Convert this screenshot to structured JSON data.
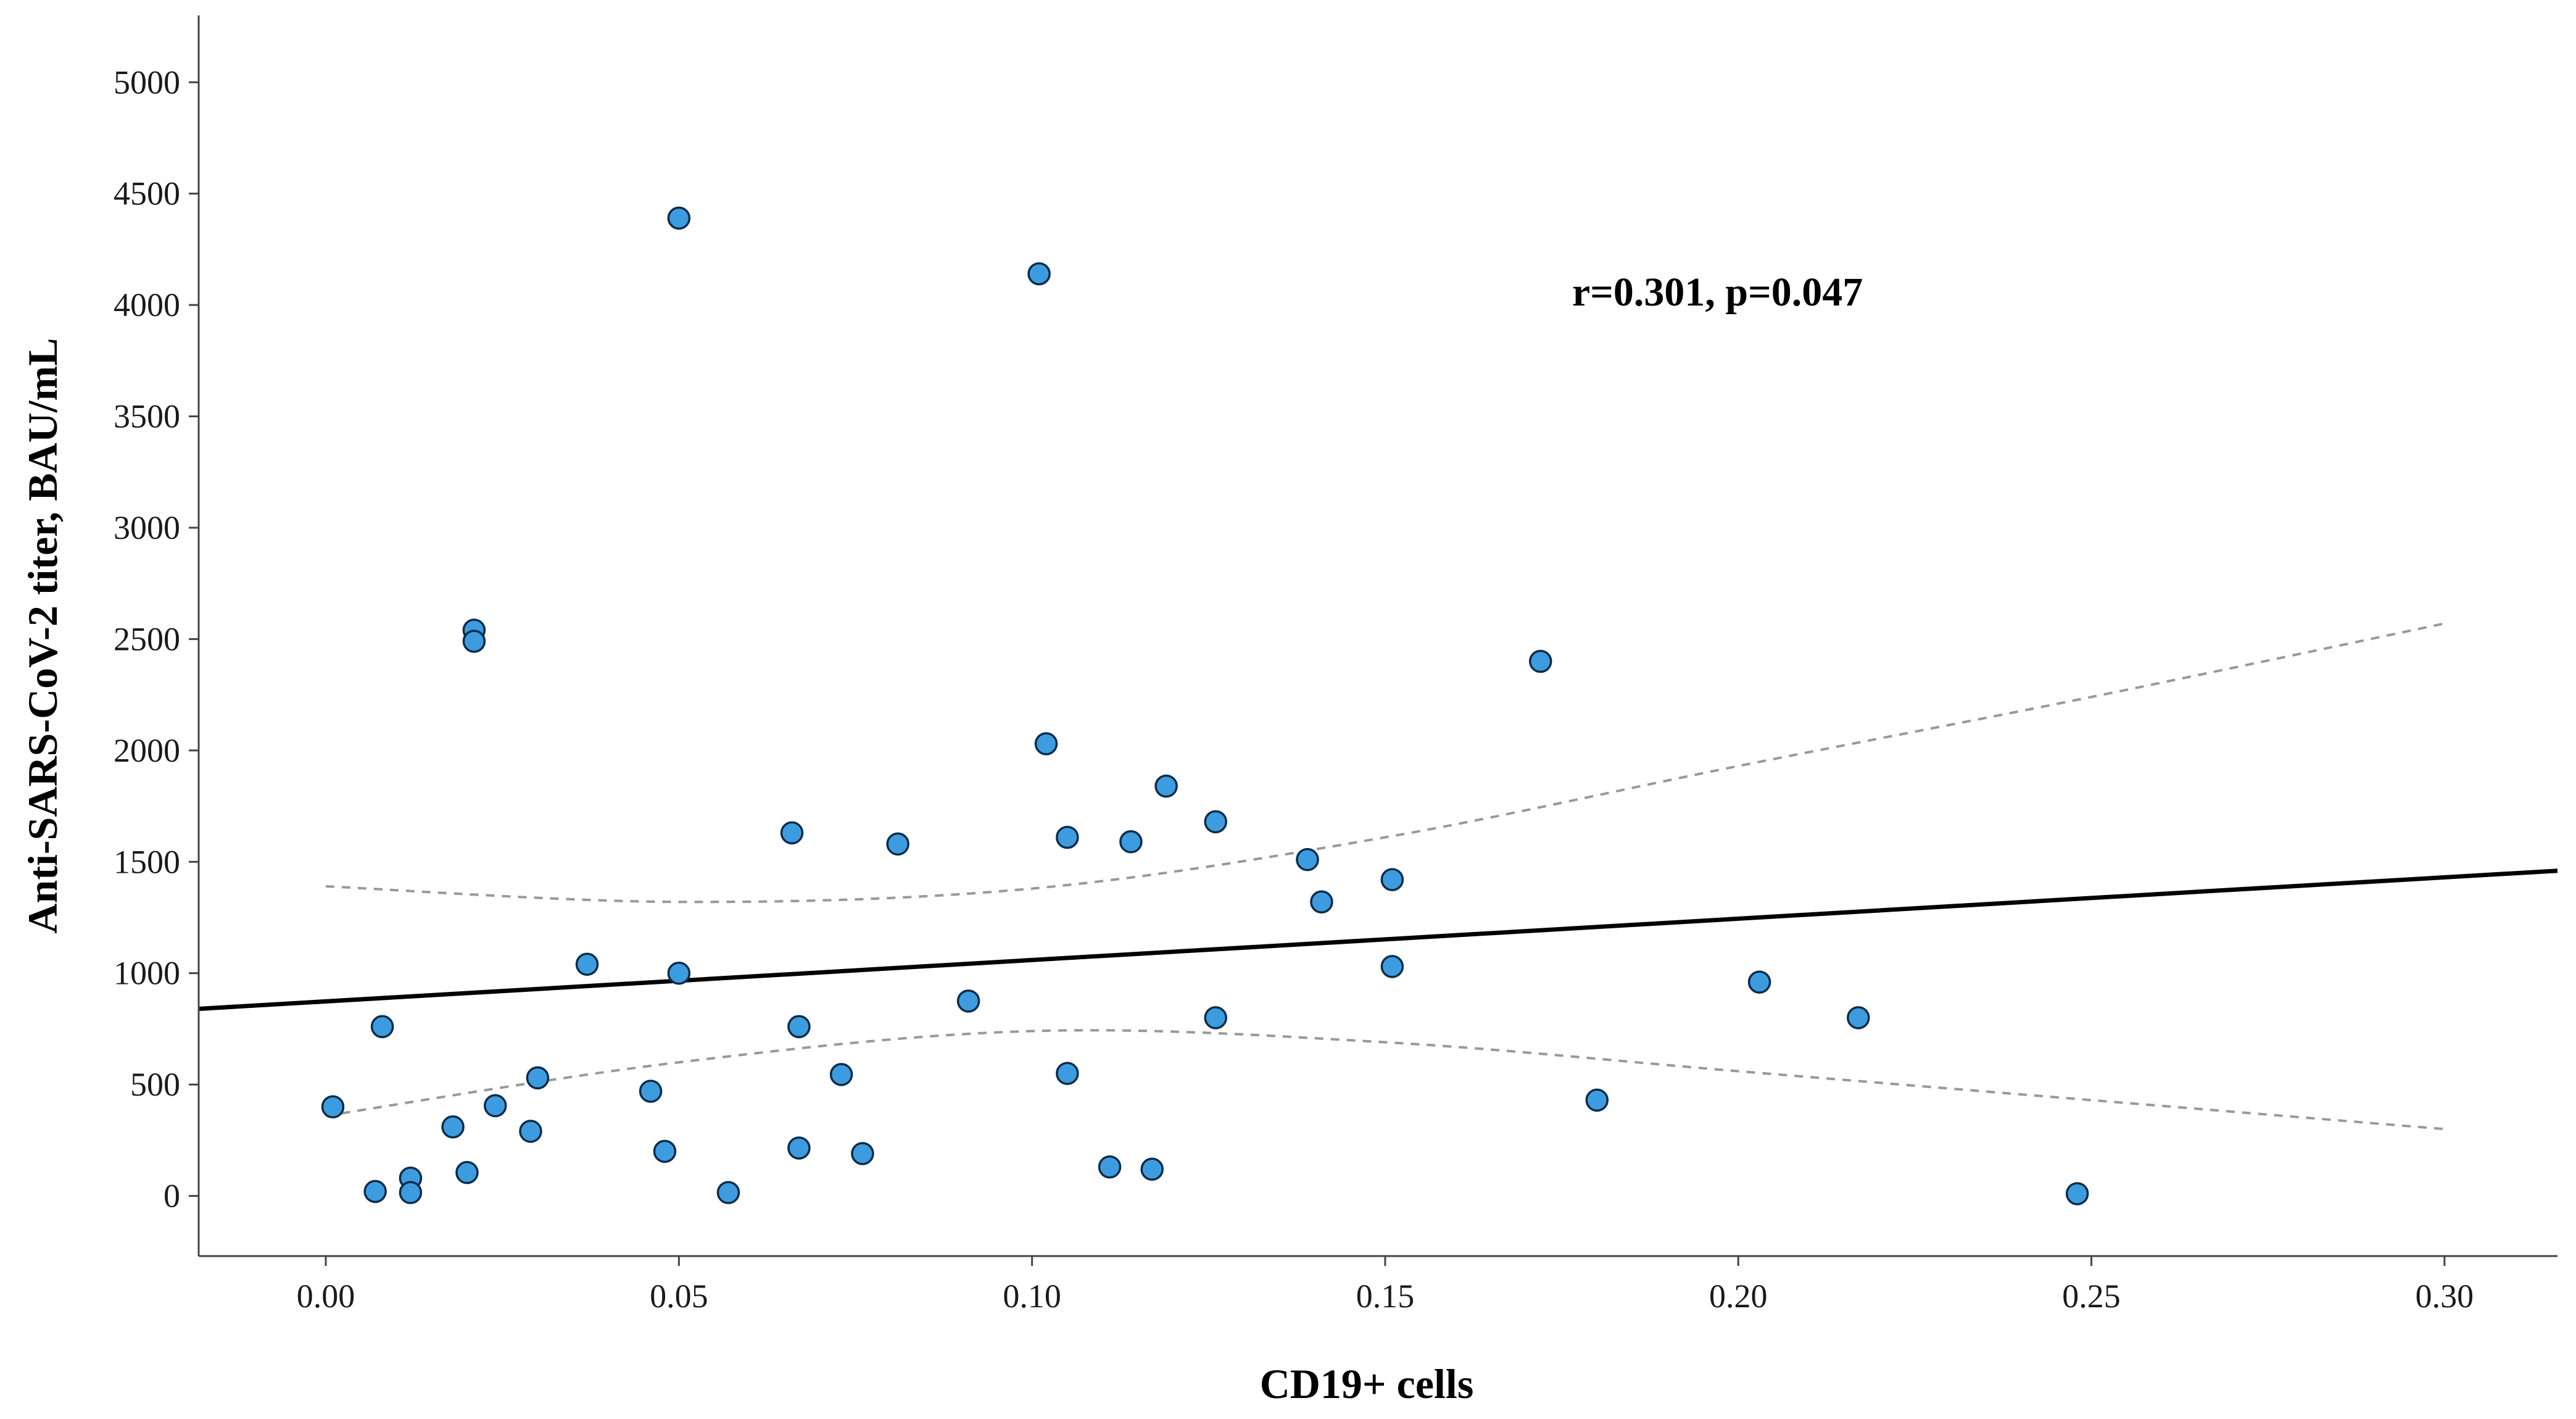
{
  "chart_data": {
    "type": "scatter",
    "xlabel": "CD19+ cells",
    "ylabel": "Anti-SARS-CoV-2 titer, BAU/mL",
    "annotation": "r=0.301, p=0.047",
    "xlim": [
      -0.018,
      0.316
    ],
    "ylim": [
      -270,
      5300
    ],
    "xticks": [
      0.0,
      0.05,
      0.1,
      0.15,
      0.2,
      0.25,
      0.3
    ],
    "xtick_labels": [
      "0.00",
      "0.05",
      "0.10",
      "0.15",
      "0.20",
      "0.25",
      "0.30"
    ],
    "yticks": [
      0,
      500,
      1000,
      1500,
      2000,
      2500,
      3000,
      3500,
      4000,
      4500,
      5000
    ],
    "ytick_labels": [
      "0",
      "500",
      "1000",
      "1500",
      "2000",
      "2500",
      "3000",
      "3500",
      "4000",
      "4500",
      "5000"
    ],
    "grid": false,
    "point_color": "#3d9ce0",
    "point_edge_color": "#0c2c48",
    "points": [
      {
        "x": 0.001,
        "y": 400
      },
      {
        "x": 0.007,
        "y": 20
      },
      {
        "x": 0.008,
        "y": 760
      },
      {
        "x": 0.012,
        "y": 80
      },
      {
        "x": 0.012,
        "y": 15
      },
      {
        "x": 0.018,
        "y": 310
      },
      {
        "x": 0.02,
        "y": 105
      },
      {
        "x": 0.021,
        "y": 2540
      },
      {
        "x": 0.021,
        "y": 2490
      },
      {
        "x": 0.024,
        "y": 405
      },
      {
        "x": 0.029,
        "y": 290
      },
      {
        "x": 0.03,
        "y": 530
      },
      {
        "x": 0.037,
        "y": 1040
      },
      {
        "x": 0.046,
        "y": 470
      },
      {
        "x": 0.048,
        "y": 200
      },
      {
        "x": 0.05,
        "y": 1000
      },
      {
        "x": 0.05,
        "y": 4390
      },
      {
        "x": 0.057,
        "y": 15
      },
      {
        "x": 0.066,
        "y": 1630
      },
      {
        "x": 0.067,
        "y": 760
      },
      {
        "x": 0.067,
        "y": 215
      },
      {
        "x": 0.073,
        "y": 545
      },
      {
        "x": 0.076,
        "y": 190
      },
      {
        "x": 0.081,
        "y": 1580
      },
      {
        "x": 0.091,
        "y": 875
      },
      {
        "x": 0.101,
        "y": 4140
      },
      {
        "x": 0.102,
        "y": 2030
      },
      {
        "x": 0.105,
        "y": 1610
      },
      {
        "x": 0.105,
        "y": 550
      },
      {
        "x": 0.111,
        "y": 130
      },
      {
        "x": 0.114,
        "y": 1590
      },
      {
        "x": 0.117,
        "y": 120
      },
      {
        "x": 0.119,
        "y": 1840
      },
      {
        "x": 0.126,
        "y": 1680
      },
      {
        "x": 0.126,
        "y": 800
      },
      {
        "x": 0.139,
        "y": 1510
      },
      {
        "x": 0.141,
        "y": 1320
      },
      {
        "x": 0.151,
        "y": 1420
      },
      {
        "x": 0.151,
        "y": 1030
      },
      {
        "x": 0.172,
        "y": 2400
      },
      {
        "x": 0.18,
        "y": 430
      },
      {
        "x": 0.203,
        "y": 960
      },
      {
        "x": 0.217,
        "y": 800
      },
      {
        "x": 0.248,
        "y": 10
      }
    ],
    "fit_line": {
      "x": [
        -0.018,
        0.316
      ],
      "y": [
        840,
        1460
      ],
      "color": "#000000"
    },
    "ci_upper": {
      "x": [
        0.0,
        0.05,
        0.1,
        0.15,
        0.2,
        0.25,
        0.3
      ],
      "y": [
        1390,
        1320,
        1380,
        1610,
        1930,
        2240,
        2570
      ],
      "color": "#999999"
    },
    "ci_lower": {
      "x": [
        0.0,
        0.05,
        0.1,
        0.15,
        0.2,
        0.25,
        0.3
      ],
      "y": [
        360,
        600,
        740,
        690,
        560,
        430,
        300
      ],
      "color": "#999999"
    }
  }
}
